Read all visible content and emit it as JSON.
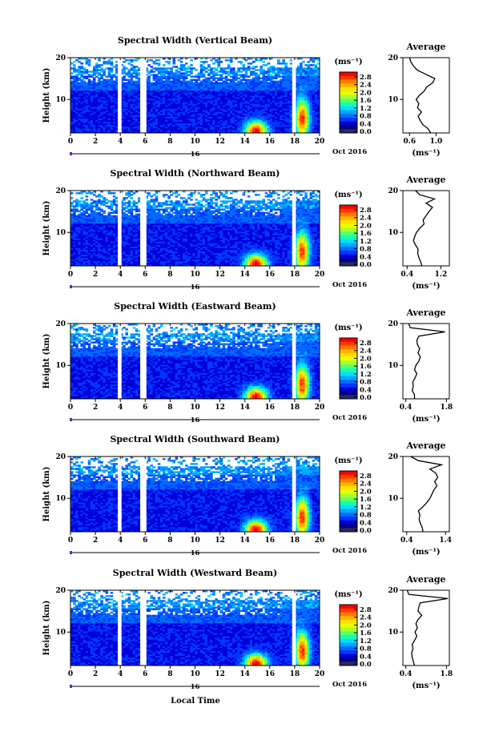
{
  "x_axis_title": "Local Time",
  "date_label": "Oct 2016",
  "day_label": "16",
  "colorbar": {
    "unit": "(ms⁻¹)",
    "ticks": [
      "2.8",
      "2.4",
      "2.0",
      "1.6",
      "1.2",
      "0.8",
      "0.4",
      "0.0"
    ],
    "colors": [
      "#ff0000",
      "#ff3b00",
      "#ff7a00",
      "#ffb400",
      "#ffe100",
      "#e7ff00",
      "#a8ff2d",
      "#5cff6e",
      "#14ffb0",
      "#00e0ff",
      "#00a8ff",
      "#006cff",
      "#0037ff",
      "#0000d9",
      "#00008b",
      "#2a2a5a"
    ]
  },
  "chart_data": [
    {
      "type": "heatmap",
      "title": "Spectral Width (Vertical Beam)",
      "ylabel": "Height (km)",
      "x_range": [
        0,
        20
      ],
      "y_range": [
        2,
        20
      ],
      "x_ticks": [
        "0",
        "2",
        "4",
        "6",
        "8",
        "10",
        "12",
        "14",
        "16",
        "18",
        "20"
      ],
      "y_ticks": [
        "20",
        "10"
      ],
      "z_range": [
        0,
        3.0
      ],
      "gaps_hours": [
        [
          3.8,
          4.1
        ],
        [
          5.6,
          6.1
        ],
        [
          17.8,
          18.1
        ]
      ],
      "profile": {
        "title": "Average",
        "xlabel": "(ms⁻¹)",
        "x_ticks": [
          "0.6",
          "1.0"
        ],
        "x_range": [
          0.5,
          1.2
        ],
        "heights_km": [
          2,
          3,
          4,
          5,
          6,
          7,
          8,
          9,
          10,
          11,
          12,
          13,
          14,
          15,
          16,
          17,
          18,
          19,
          20
        ],
        "values": [
          0.92,
          0.88,
          0.8,
          0.76,
          0.73,
          0.78,
          0.72,
          0.74,
          0.7,
          0.75,
          0.82,
          0.86,
          0.95,
          0.98,
          0.85,
          0.72,
          0.66,
          0.62,
          0.6
        ]
      }
    },
    {
      "type": "heatmap",
      "title": "Spectral Width (Northward Beam)",
      "ylabel": "Height (km)",
      "x_range": [
        0,
        20
      ],
      "y_range": [
        2,
        20
      ],
      "x_ticks": [
        "0",
        "2",
        "4",
        "6",
        "8",
        "10",
        "12",
        "14",
        "16",
        "18",
        "20"
      ],
      "y_ticks": [
        "20",
        "10"
      ],
      "z_range": [
        0,
        3.0
      ],
      "gaps_hours": [
        [
          3.8,
          4.1
        ],
        [
          5.6,
          6.1
        ],
        [
          17.8,
          18.1
        ]
      ],
      "profile": {
        "title": "Average",
        "xlabel": "(ms⁻¹)",
        "x_ticks": [
          "0.4",
          "1.2"
        ],
        "x_range": [
          0.3,
          1.4
        ],
        "heights_km": [
          2,
          3,
          4,
          5,
          6,
          7,
          8,
          9,
          10,
          11,
          12,
          13,
          14,
          15,
          16,
          17,
          18,
          19,
          20
        ],
        "values": [
          0.75,
          0.72,
          0.68,
          0.65,
          0.66,
          0.6,
          0.55,
          0.58,
          0.62,
          0.7,
          0.8,
          0.78,
          0.85,
          0.92,
          1.0,
          0.85,
          1.05,
          0.7,
          0.6
        ]
      }
    },
    {
      "type": "heatmap",
      "title": "Spectral Width (Eastward Beam)",
      "ylabel": "Height (km)",
      "x_range": [
        0,
        20
      ],
      "y_range": [
        2,
        20
      ],
      "x_ticks": [
        "0",
        "2",
        "4",
        "6",
        "8",
        "10",
        "12",
        "14",
        "16",
        "18",
        "20"
      ],
      "y_ticks": [
        "20",
        "10"
      ],
      "z_range": [
        0,
        3.0
      ],
      "gaps_hours": [
        [
          3.8,
          4.1
        ],
        [
          5.6,
          6.1
        ],
        [
          17.8,
          18.1
        ]
      ],
      "profile": {
        "title": "Average",
        "xlabel": "(ms⁻¹)",
        "x_ticks": [
          "0.4",
          "1.8"
        ],
        "x_range": [
          0.3,
          1.9
        ],
        "heights_km": [
          2,
          3,
          4,
          5,
          6,
          7,
          8,
          9,
          10,
          11,
          12,
          13,
          14,
          15,
          16,
          17,
          18,
          19,
          20
        ],
        "values": [
          0.7,
          0.7,
          0.62,
          0.66,
          0.64,
          0.72,
          0.78,
          0.7,
          0.75,
          0.85,
          0.9,
          0.82,
          0.88,
          0.8,
          0.78,
          0.85,
          1.75,
          0.55,
          0.5
        ]
      }
    },
    {
      "type": "heatmap",
      "title": "Spectral Width (Southward Beam)",
      "ylabel": "Height (km)",
      "x_range": [
        0,
        20
      ],
      "y_range": [
        2,
        20
      ],
      "x_ticks": [
        "0",
        "2",
        "4",
        "6",
        "8",
        "10",
        "12",
        "14",
        "16",
        "18",
        "20"
      ],
      "y_ticks": [
        "20",
        "10"
      ],
      "z_range": [
        0,
        3.0
      ],
      "gaps_hours": [
        [
          3.8,
          4.1
        ],
        [
          5.6,
          6.1
        ],
        [
          17.8,
          18.1
        ]
      ],
      "profile": {
        "title": "Average",
        "xlabel": "(ms⁻¹)",
        "x_ticks": [
          "0.4",
          "1.4"
        ],
        "x_range": [
          0.3,
          1.5
        ],
        "heights_km": [
          2,
          3,
          4,
          5,
          6,
          7,
          8,
          9,
          10,
          11,
          12,
          13,
          14,
          15,
          16,
          17,
          18,
          19,
          20
        ],
        "values": [
          0.82,
          0.8,
          0.75,
          0.72,
          0.74,
          0.7,
          0.82,
          0.92,
          1.0,
          1.05,
          1.1,
          1.18,
          1.12,
          1.2,
          1.15,
          1.0,
          1.3,
          0.7,
          0.5
        ]
      }
    },
    {
      "type": "heatmap",
      "title": "Spectral Width (Westward Beam)",
      "ylabel": "Height (km)",
      "x_range": [
        0,
        20
      ],
      "y_range": [
        2,
        20
      ],
      "x_ticks": [
        "0",
        "2",
        "4",
        "6",
        "8",
        "10",
        "12",
        "14",
        "16",
        "18",
        "20"
      ],
      "y_ticks": [
        "20",
        "10"
      ],
      "z_range": [
        0,
        3.0
      ],
      "gaps_hours": [
        [
          3.8,
          4.1
        ],
        [
          5.6,
          6.1
        ],
        [
          17.8,
          18.1
        ]
      ],
      "profile": {
        "title": "Average",
        "xlabel": "(ms⁻¹)",
        "x_ticks": [
          "0.4",
          "1.8"
        ],
        "x_range": [
          0.3,
          1.9
        ],
        "heights_km": [
          2,
          3,
          4,
          5,
          6,
          7,
          8,
          9,
          10,
          11,
          12,
          13,
          14,
          15,
          16,
          17,
          18,
          19,
          20
        ],
        "values": [
          0.7,
          0.66,
          0.62,
          0.6,
          0.65,
          0.62,
          0.7,
          0.78,
          0.72,
          0.8,
          0.75,
          0.82,
          0.95,
          0.82,
          0.85,
          0.9,
          1.85,
          0.5,
          0.45
        ]
      }
    }
  ]
}
